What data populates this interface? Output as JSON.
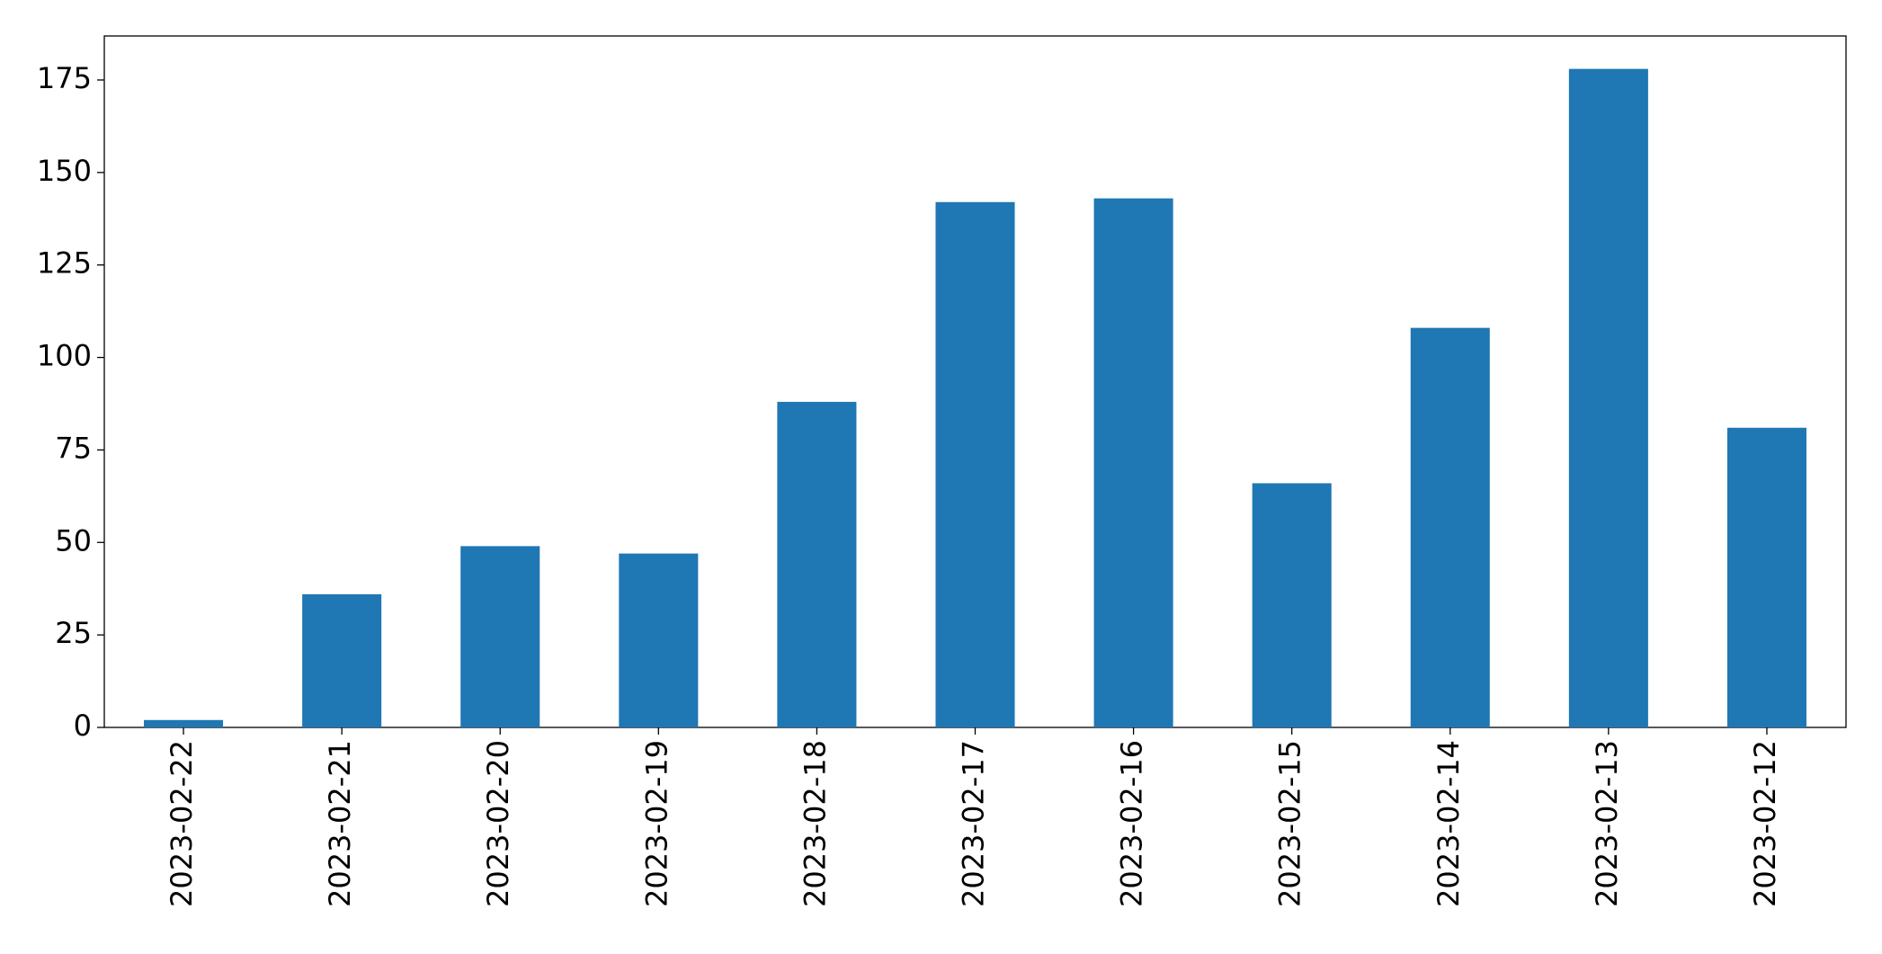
{
  "chart_data": {
    "type": "bar",
    "categories": [
      "2023-02-22",
      "2023-02-21",
      "2023-02-20",
      "2023-02-19",
      "2023-02-18",
      "2023-02-17",
      "2023-02-16",
      "2023-02-15",
      "2023-02-14",
      "2023-02-13",
      "2023-02-12"
    ],
    "values": [
      2,
      36,
      49,
      47,
      88,
      142,
      143,
      66,
      108,
      178,
      81
    ],
    "color": "#1f77b4",
    "ylim": [
      0,
      186.9
    ],
    "yticks": [
      0,
      25,
      50,
      75,
      100,
      125,
      150,
      175
    ],
    "grid": false
  }
}
